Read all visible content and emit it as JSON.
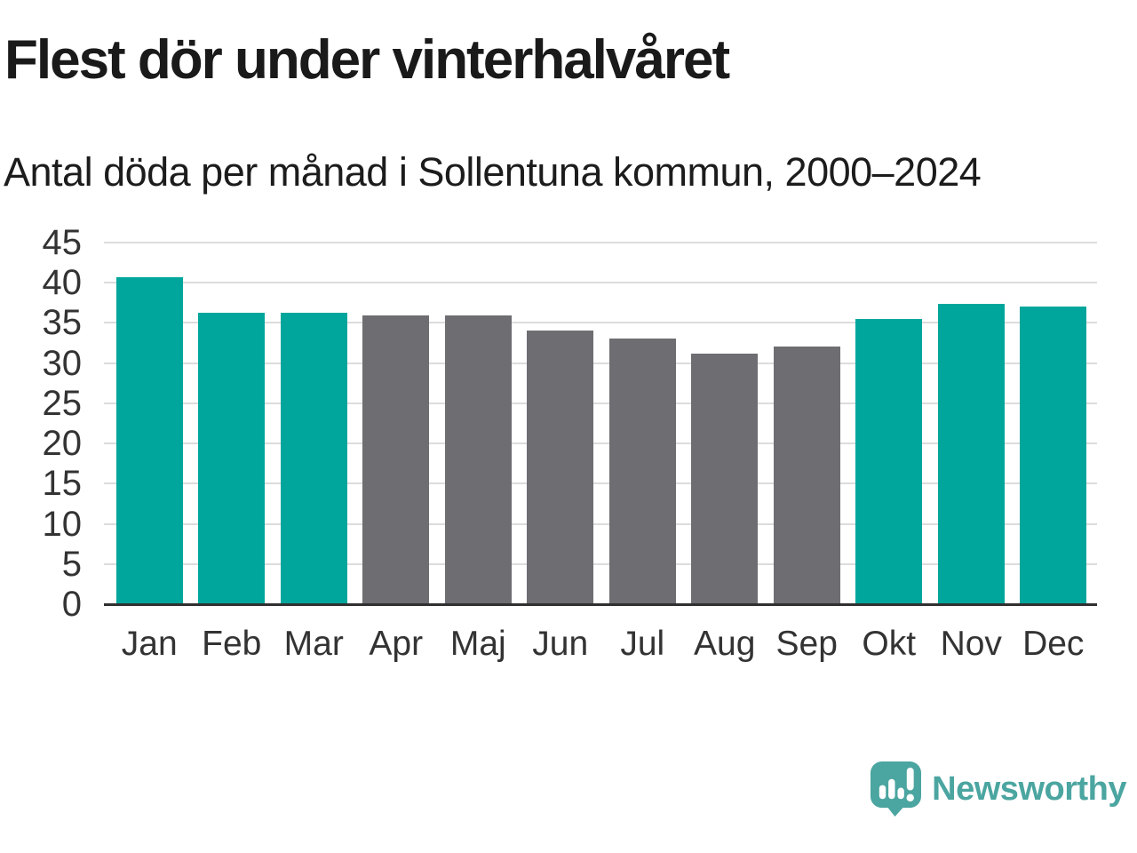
{
  "header": {
    "title": "Flest dör under vinterhalvåret",
    "subtitle": "Antal döda per månad i Sollentuna kommun, 2000–2024"
  },
  "chart_data": {
    "type": "bar",
    "title": "Flest dör under vinterhalvåret",
    "subtitle": "Antal döda per månad i Sollentuna kommun, 2000–2024",
    "categories": [
      "Jan",
      "Feb",
      "Mar",
      "Apr",
      "Maj",
      "Jun",
      "Jul",
      "Aug",
      "Sep",
      "Okt",
      "Nov",
      "Dec"
    ],
    "values": [
      40.7,
      36.3,
      36.3,
      35.9,
      35.9,
      34.1,
      33.1,
      31.2,
      32.1,
      35.5,
      37.4,
      37.1
    ],
    "bar_colors": [
      "#00A69B",
      "#00A69B",
      "#00A69B",
      "#6D6D72",
      "#6D6D72",
      "#6D6D72",
      "#6D6D72",
      "#6D6D72",
      "#6D6D72",
      "#00A69B",
      "#00A69B",
      "#00A69B"
    ],
    "palette": {
      "winter_months": "#00A69B",
      "summer_months": "#6D6D72"
    },
    "xlabel": "",
    "ylabel": "",
    "ylim": [
      0,
      45
    ],
    "yticks": [
      0,
      5,
      10,
      15,
      20,
      25,
      30,
      35,
      40,
      45
    ],
    "grid": true,
    "gridline_color": "#dcdcdc",
    "axis_line_color": "#303030",
    "legend": "none"
  },
  "footer": {
    "brand": "Newsworthy",
    "logo_color": "#4BA5A0",
    "logo_icon": "bar-chart-speech-bubble-icon"
  }
}
